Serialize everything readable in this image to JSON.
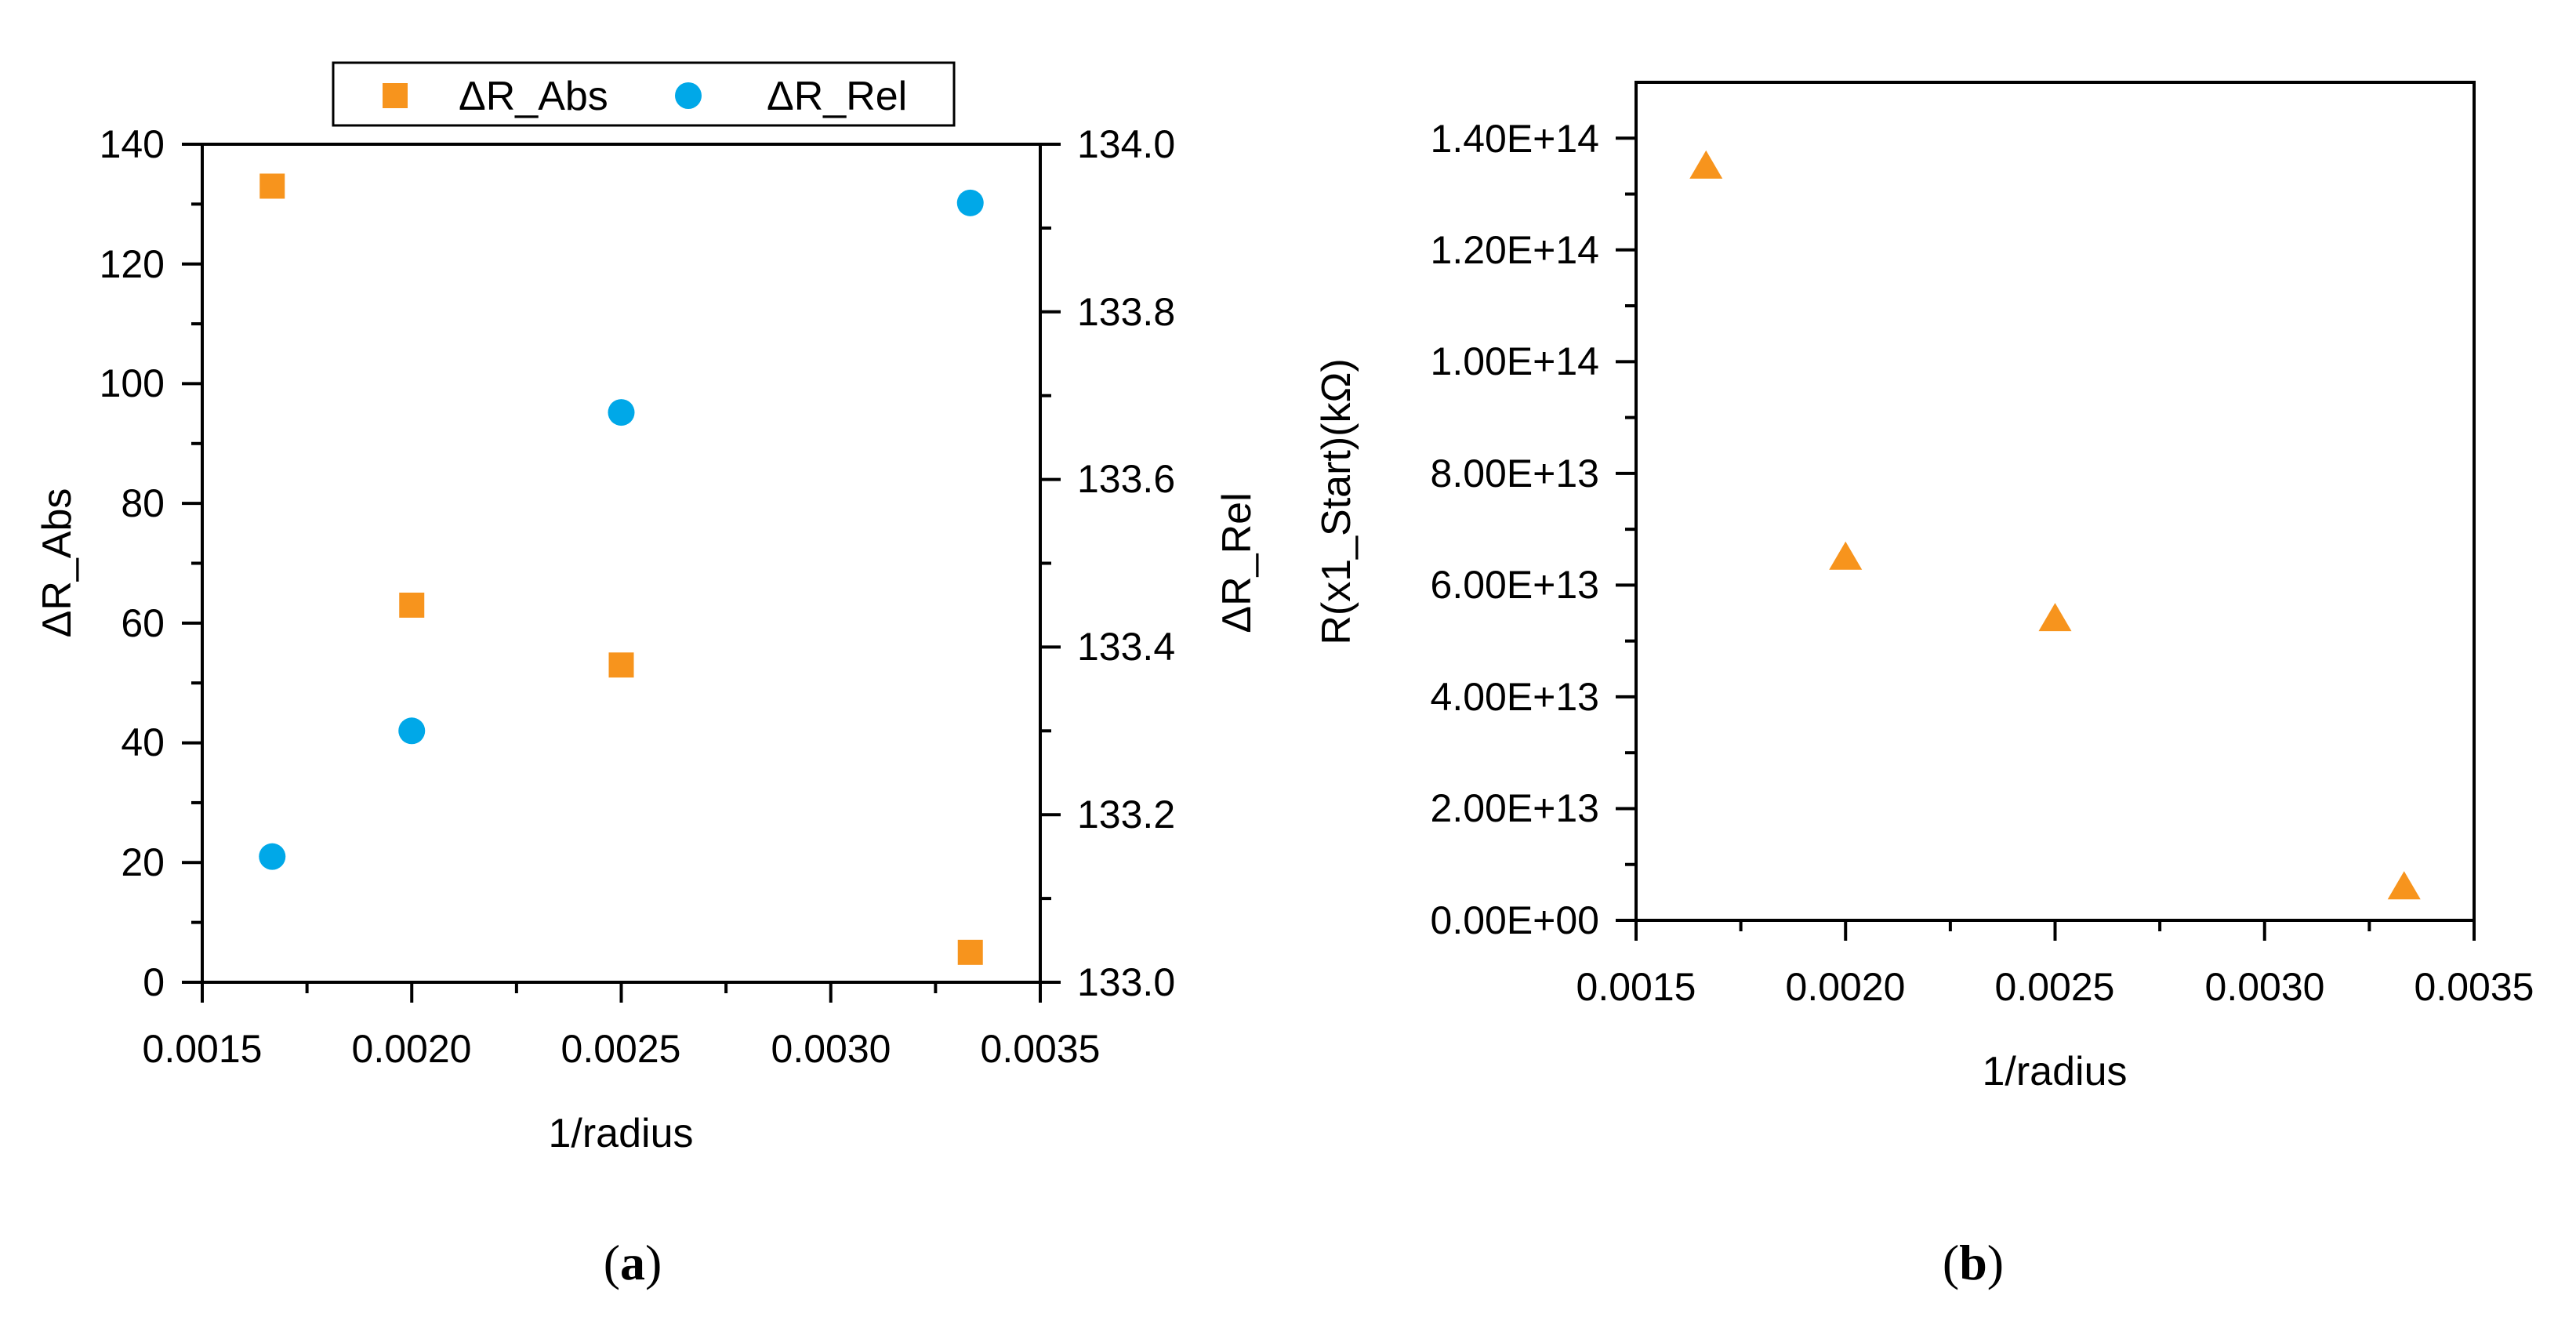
{
  "colors": {
    "abs": "#f7941d",
    "rel": "#00a8e8",
    "axis": "#000000"
  },
  "chart_data": [
    {
      "type": "scatter",
      "panel_label": {
        "open": "(",
        "letter": "a",
        "close": ")"
      },
      "xlabel": "1/radius",
      "ylabel_left": "ΔR_Abs",
      "ylabel_right": "ΔR_Rel",
      "xlim": [
        0.0015,
        0.0035
      ],
      "ylim_left": [
        0,
        140
      ],
      "ylim_right": [
        133.0,
        134.0
      ],
      "x_ticks": [
        "0.0015",
        "0.0020",
        "0.0025",
        "0.0030",
        "0.0035"
      ],
      "y_ticks_left": [
        "0",
        "20",
        "40",
        "60",
        "80",
        "100",
        "120",
        "140"
      ],
      "y_ticks_right": [
        "133.0",
        "133.2",
        "133.4",
        "133.6",
        "133.8",
        "134.0"
      ],
      "legend": [
        {
          "name": "ΔR_Abs",
          "marker": "square"
        },
        {
          "name": "ΔR_Rel",
          "marker": "circle"
        }
      ],
      "series": [
        {
          "name": "ΔR_Abs",
          "axis": "left",
          "marker": "square",
          "x": [
            0.001667,
            0.002,
            0.0025,
            0.003333
          ],
          "y": [
            133,
            63,
            53,
            5
          ]
        },
        {
          "name": "ΔR_Rel",
          "axis": "right",
          "marker": "circle",
          "x": [
            0.001667,
            0.002,
            0.0025,
            0.003333
          ],
          "y": [
            133.15,
            133.3,
            133.68,
            133.93
          ]
        }
      ]
    },
    {
      "type": "scatter",
      "panel_label": {
        "open": "(",
        "letter": "b",
        "close": ")"
      },
      "xlabel": "1/radius",
      "ylabel": "R(x1_Start)(kΩ)",
      "xlim": [
        0.0015,
        0.0035
      ],
      "ylim": [
        0,
        150000000000000.0
      ],
      "x_ticks": [
        "0.0015",
        "0.0020",
        "0.0025",
        "0.0030",
        "0.0035"
      ],
      "y_ticks": [
        "0.00E+00",
        "2.00E+13",
        "4.00E+13",
        "6.00E+13",
        "8.00E+13",
        "1.00E+14",
        "1.20E+14",
        "1.40E+14"
      ],
      "series": [
        {
          "name": "R(x1_Start)",
          "marker": "triangle",
          "x": [
            0.001667,
            0.002,
            0.0025,
            0.003333
          ],
          "y": [
            135000000000000.0,
            65000000000000.0,
            54000000000000.0,
            6000000000000.0
          ]
        }
      ]
    }
  ]
}
